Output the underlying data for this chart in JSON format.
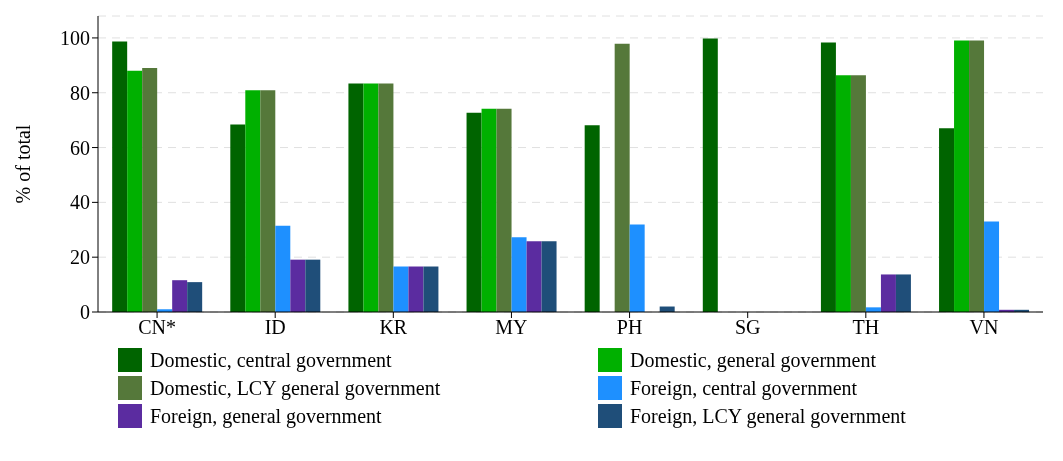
{
  "chart_data": {
    "type": "bar",
    "ylabel": "% of total",
    "categories": [
      "CN*",
      "ID",
      "KR",
      "MY",
      "PH",
      "SG",
      "TH",
      "VN"
    ],
    "series": [
      {
        "name": "Domestic, central government",
        "color": "#006400",
        "values": [
          98.7,
          68.4,
          83.4,
          72.7,
          68.1,
          99.8,
          98.3,
          67
        ]
      },
      {
        "name": "Domestic, general government",
        "color": "#00b000",
        "values": [
          88,
          80.9,
          83.4,
          74.2,
          null,
          null,
          86.4,
          99.1
        ]
      },
      {
        "name": "Domestic, LCY general government",
        "color": "#55783a",
        "values": [
          89,
          80.9,
          83.4,
          74.2,
          97.9,
          null,
          86.4,
          99.1
        ]
      },
      {
        "name": "Foreign, central government",
        "color": "#1e90ff",
        "values": [
          1,
          31.5,
          16.6,
          27.3,
          31.9,
          null,
          1.7,
          33
        ]
      },
      {
        "name": "Foreign, general government",
        "color": "#5b2ca0",
        "values": [
          11.6,
          19.1,
          16.6,
          25.8,
          null,
          null,
          13.7,
          0.8
        ]
      },
      {
        "name": "Foreign, LCY general government",
        "color": "#1f4e79",
        "values": [
          10.9,
          19.1,
          16.6,
          25.8,
          2,
          null,
          13.7,
          0.8
        ]
      }
    ],
    "ylim": [
      0,
      108
    ],
    "yticks": [
      0,
      20,
      40,
      60,
      80,
      100
    ],
    "grid": "y",
    "legend": "bottom"
  }
}
